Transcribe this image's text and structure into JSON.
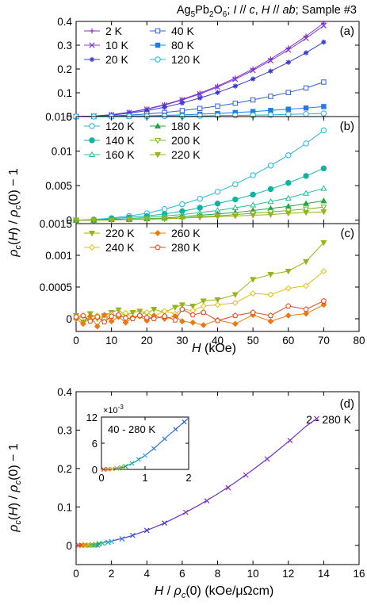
{
  "title": "Ag5Pb2O6; I // c, H // ab; Sample #3",
  "title_parts": {
    "a": "Ag",
    "b": "5",
    "c": "Pb",
    "d": "2",
    "e": "O",
    "f": "6",
    "g": "; ",
    "h": "I",
    "i": " // ",
    "j": "c",
    "k": ", ",
    "l": "H",
    "m": " // ",
    "n": "ab",
    "o": "; Sample #3"
  },
  "ylabel_top": "ρc(H) / ρc(0) − 1",
  "ylabel_parts": {
    "rho": "ρ",
    "sub": "c",
    "arg1": "(H) / ",
    "rho2": "ρ",
    "sub2": "c",
    "rest": "(0) − 1"
  },
  "xlabel_top": "H (kOe)",
  "xlabel_top_parts": {
    "h": "H",
    "rest": " (kOe)"
  },
  "xlabel_d": "H / ρc(0) (kOe/μΩcm)",
  "xlabel_d_parts": {
    "h": "H",
    "mid": " / ",
    "rho": "ρ",
    "sub": "c",
    "rest": "(0) (kOe/μΩcm)"
  },
  "colors": {
    "2K": "#8b2fc9",
    "10K": "#7a3ad9",
    "20K": "#3b3bd4",
    "40K": "#2d63d6",
    "80K": "#1f7ee6",
    "120K": "#22b3e6",
    "140K": "#10b3a3",
    "160K": "#20c08a",
    "180K": "#22a640",
    "200K": "#6dbb1f",
    "220K": "#98b41a",
    "240K": "#e0c010",
    "260K": "#e87a10",
    "280K": "#e2481d"
  },
  "chart_data": [
    {
      "panel": "(a)",
      "type": "line",
      "xlim": [
        0,
        80
      ],
      "ylim": [
        0,
        0.4
      ],
      "yticks": [
        "0",
        "0.1",
        "0.2",
        "0.3",
        "0.4"
      ],
      "series": [
        {
          "name": "2 K",
          "marker": "plus",
          "color_key": "2K",
          "x": [
            0,
            5,
            10,
            15,
            20,
            25,
            30,
            35,
            40,
            45,
            50,
            55,
            60,
            65,
            70
          ],
          "y": [
            0,
            0.002,
            0.008,
            0.018,
            0.032,
            0.05,
            0.072,
            0.098,
            0.128,
            0.162,
            0.2,
            0.242,
            0.288,
            0.338,
            0.393
          ]
        },
        {
          "name": "10 K",
          "marker": "x",
          "color_key": "10K",
          "x": [
            0,
            5,
            10,
            15,
            20,
            25,
            30,
            35,
            40,
            45,
            50,
            55,
            60,
            65,
            70
          ],
          "y": [
            0,
            0.002,
            0.008,
            0.017,
            0.031,
            0.048,
            0.07,
            0.095,
            0.124,
            0.157,
            0.194,
            0.235,
            0.28,
            0.329,
            0.382
          ]
        },
        {
          "name": "20 K",
          "marker": "star",
          "color_key": "20K",
          "x": [
            0,
            5,
            10,
            15,
            20,
            25,
            30,
            35,
            40,
            45,
            50,
            55,
            60,
            65,
            70
          ],
          "y": [
            0,
            0.002,
            0.006,
            0.014,
            0.025,
            0.039,
            0.057,
            0.078,
            0.101,
            0.128,
            0.158,
            0.191,
            0.228,
            0.268,
            0.313
          ]
        },
        {
          "name": "40 K",
          "marker": "square-open",
          "color_key": "40K",
          "x": [
            0,
            5,
            10,
            15,
            20,
            25,
            30,
            35,
            40,
            45,
            50,
            55,
            60,
            65,
            70
          ],
          "y": [
            0,
            0.001,
            0.003,
            0.006,
            0.011,
            0.017,
            0.025,
            0.034,
            0.044,
            0.056,
            0.07,
            0.085,
            0.101,
            0.12,
            0.145
          ]
        },
        {
          "name": "80 K",
          "marker": "square-filled",
          "color_key": "80K",
          "x": [
            0,
            5,
            10,
            15,
            20,
            25,
            30,
            35,
            40,
            45,
            50,
            55,
            60,
            65,
            70
          ],
          "y": [
            0,
            0,
            0.001,
            0.002,
            0.003,
            0.005,
            0.007,
            0.01,
            0.013,
            0.017,
            0.021,
            0.026,
            0.031,
            0.036,
            0.042
          ]
        },
        {
          "name": "120 K",
          "marker": "circle-open",
          "color_key": "120K",
          "x": [
            0,
            5,
            10,
            15,
            20,
            25,
            30,
            35,
            40,
            45,
            50,
            55,
            60,
            65,
            70
          ],
          "y": [
            0,
            0,
            0,
            0.001,
            0.001,
            0.002,
            0.002,
            0.003,
            0.004,
            0.005,
            0.006,
            0.007,
            0.009,
            0.011,
            0.013
          ]
        }
      ]
    },
    {
      "panel": "(b)",
      "type": "line",
      "xlim": [
        0,
        80
      ],
      "ylim": [
        -0.0005,
        0.015
      ],
      "yticks": [
        "0",
        "0.005",
        "0.01",
        "0.015"
      ],
      "series": [
        {
          "name": "120 K",
          "marker": "circle-open",
          "color_key": "120K",
          "x": [
            0,
            5,
            10,
            15,
            20,
            25,
            30,
            35,
            40,
            45,
            50,
            55,
            60,
            65,
            70
          ],
          "y": [
            0,
            0.0001,
            0.0003,
            0.0006,
            0.001,
            0.0016,
            0.0023,
            0.0031,
            0.0041,
            0.0052,
            0.0065,
            0.0079,
            0.0094,
            0.0111,
            0.013
          ]
        },
        {
          "name": "140 K",
          "marker": "circle-filled",
          "color_key": "140K",
          "x": [
            0,
            5,
            10,
            15,
            20,
            25,
            30,
            35,
            40,
            45,
            50,
            55,
            60,
            65,
            70
          ],
          "y": [
            0,
            0,
            0.0002,
            0.0004,
            0.0006,
            0.0009,
            0.0013,
            0.0018,
            0.0024,
            0.003,
            0.0037,
            0.0045,
            0.0054,
            0.0064,
            0.0075
          ]
        },
        {
          "name": "160 K",
          "marker": "triangle-open",
          "color_key": "160K",
          "x": [
            0,
            5,
            10,
            15,
            20,
            25,
            30,
            35,
            40,
            45,
            50,
            55,
            60,
            65,
            70
          ],
          "y": [
            0,
            0,
            0.0001,
            0.0002,
            0.0004,
            0.0006,
            0.0008,
            0.0011,
            0.0014,
            0.0018,
            0.0022,
            0.0027,
            0.0032,
            0.0039,
            0.0046
          ]
        },
        {
          "name": "180 K",
          "marker": "triangle-filled",
          "color_key": "180K",
          "x": [
            0,
            5,
            10,
            15,
            20,
            25,
            30,
            35,
            40,
            45,
            50,
            55,
            60,
            65,
            70
          ],
          "y": [
            0,
            0,
            0.0001,
            0.0001,
            0.0002,
            0.0003,
            0.0005,
            0.0007,
            0.0009,
            0.0011,
            0.0014,
            0.0017,
            0.002,
            0.0024,
            0.0028
          ]
        },
        {
          "name": "200 K",
          "marker": "triangle-down-open",
          "color_key": "200K",
          "x": [
            0,
            5,
            10,
            15,
            20,
            25,
            30,
            35,
            40,
            45,
            50,
            55,
            60,
            65,
            70
          ],
          "y": [
            0,
            0,
            0,
            0.0001,
            0.0002,
            0.0002,
            0.0003,
            0.0005,
            0.0006,
            0.0008,
            0.001,
            0.0012,
            0.0014,
            0.0016,
            0.0019
          ]
        },
        {
          "name": "220 K",
          "marker": "triangle-down-filled",
          "color_key": "220K",
          "x": [
            0,
            5,
            10,
            15,
            20,
            25,
            30,
            35,
            40,
            45,
            50,
            55,
            60,
            65,
            70
          ],
          "y": [
            0,
            0,
            0,
            0.0001,
            0.0001,
            0.0002,
            0.0003,
            0.0004,
            0.0005,
            0.0006,
            0.0007,
            0.0008,
            0.001,
            0.0011,
            0.0012
          ]
        }
      ]
    },
    {
      "panel": "(c)",
      "type": "line",
      "xlim": [
        0,
        80
      ],
      "ylim": [
        -0.0002,
        0.0015
      ],
      "yticks": [
        "0",
        "0.0005",
        "0.001",
        "0.0015"
      ],
      "series": [
        {
          "name": "220 K",
          "marker": "triangle-down-filled",
          "color_key": "220K",
          "x": [
            0,
            2,
            4,
            6,
            8,
            10,
            12,
            14,
            16,
            18,
            20,
            22,
            25,
            28,
            30,
            33,
            36,
            40,
            45,
            50,
            55,
            60,
            65,
            70
          ],
          "y": [
            5e-05,
            -5e-05,
            8e-05,
            0.0,
            5e-05,
            0.0001,
            0.00014,
            5e-05,
            0.0001,
            0.00012,
            8e-05,
            0.00015,
            0.0001,
            0.00018,
            0.00022,
            0.0002,
            0.00028,
            0.0003,
            0.00038,
            0.00062,
            0.0007,
            0.00075,
            0.0009,
            0.0012
          ]
        },
        {
          "name": "240 K",
          "marker": "diamond-open",
          "color_key": "240K",
          "x": [
            0,
            2,
            4,
            6,
            8,
            10,
            12,
            14,
            16,
            18,
            20,
            22,
            25,
            28,
            30,
            33,
            36,
            40,
            45,
            50,
            55,
            60,
            65,
            70
          ],
          "y": [
            0.0,
            4e-05,
            -3e-05,
            5e-05,
            0.0,
            7e-05,
            3e-05,
            9e-05,
            2e-05,
            6e-05,
            0.0001,
            4e-05,
            0.00012,
            8e-05,
            0.00015,
            0.00013,
            0.0002,
            0.00022,
            0.00025,
            0.0004,
            0.00038,
            0.00048,
            0.00052,
            0.00075
          ]
        },
        {
          "name": "260 K",
          "marker": "diamond-filled",
          "color_key": "260K",
          "x": [
            0,
            2,
            4,
            6,
            8,
            10,
            12,
            14,
            16,
            18,
            20,
            22,
            25,
            28,
            30,
            33,
            36,
            40,
            45,
            50,
            55,
            60,
            65,
            70
          ],
          "y": [
            0.0,
            -8e-05,
            4e-05,
            -0.00012,
            6e-05,
            -4e-05,
            3e-05,
            -6e-05,
            2e-05,
            4e-05,
            -3e-05,
            5e-05,
            0.0,
            4e-05,
            -4e-05,
            -6e-05,
            -0.0001,
            -2e-05,
            -8e-05,
            6e-05,
            -4e-05,
            5e-05,
            8e-05,
            0.00022
          ]
        },
        {
          "name": "280 K",
          "marker": "pentagon-open",
          "color_key": "280K",
          "x": [
            0,
            2,
            4,
            6,
            8,
            10,
            12,
            14,
            16,
            18,
            20,
            22,
            25,
            28,
            30,
            33,
            36,
            40,
            45,
            50,
            55,
            60,
            65,
            70
          ],
          "y": [
            3e-05,
            5e-05,
            -4e-05,
            3e-05,
            -5e-05,
            4e-05,
            6e-05,
            1e-05,
            0.0,
            5e-05,
            2e-05,
            0.0,
            4e-05,
            -2e-05,
            0.00015,
            6e-05,
            0.0001,
            -3e-05,
            5e-05,
            0.0001,
            5e-05,
            0.0002,
            0.00015,
            0.00028
          ]
        }
      ]
    },
    {
      "panel": "(d)",
      "type": "scatter",
      "xlim": [
        0,
        16
      ],
      "ylim": [
        -0.05,
        0.4
      ],
      "yticks": [
        "0",
        "0.1",
        "0.2",
        "0.3",
        "0.4"
      ],
      "xticks": [
        "0",
        "2",
        "4",
        "6",
        "8",
        "10",
        "12",
        "14",
        "16"
      ],
      "annotation": "2 - 280 K",
      "fit_curve": {
        "x": [
          0,
          1,
          2,
          3,
          4,
          5,
          6,
          7,
          8,
          9,
          10,
          11,
          12,
          13,
          13.6
        ],
        "y": [
          0,
          0.003,
          0.011,
          0.023,
          0.039,
          0.058,
          0.081,
          0.106,
          0.134,
          0.164,
          0.197,
          0.232,
          0.27,
          0.31,
          0.33
        ]
      },
      "points": [
        {
          "x": 0.3,
          "y": 0.0005,
          "color_key": "280K"
        },
        {
          "x": 0.5,
          "y": 0.0008,
          "color_key": "260K"
        },
        {
          "x": 0.7,
          "y": 0.0015,
          "color_key": "240K"
        },
        {
          "x": 0.9,
          "y": 0.002,
          "color_key": "220K"
        },
        {
          "x": 1.1,
          "y": 0.0025,
          "color_key": "200K"
        },
        {
          "x": 1.3,
          "y": 0.004,
          "color_key": "180K"
        },
        {
          "x": 1.5,
          "y": 0.005,
          "color_key": "160K"
        },
        {
          "x": 1.8,
          "y": 0.008,
          "color_key": "140K"
        },
        {
          "x": 2.0,
          "y": 0.01,
          "color_key": "120K"
        },
        {
          "x": 2.6,
          "y": 0.017,
          "color_key": "80K"
        },
        {
          "x": 3.2,
          "y": 0.026,
          "color_key": "40K"
        },
        {
          "x": 4.0,
          "y": 0.039,
          "color_key": "20K"
        },
        {
          "x": 5.0,
          "y": 0.058,
          "color_key": "20K"
        },
        {
          "x": 6.2,
          "y": 0.086,
          "color_key": "10K"
        },
        {
          "x": 7.4,
          "y": 0.116,
          "color_key": "10K"
        },
        {
          "x": 8.6,
          "y": 0.15,
          "color_key": "2K"
        },
        {
          "x": 9.6,
          "y": 0.183,
          "color_key": "2K"
        },
        {
          "x": 10.8,
          "y": 0.225,
          "color_key": "2K"
        },
        {
          "x": 12.1,
          "y": 0.273,
          "color_key": "10K"
        },
        {
          "x": 13.6,
          "y": 0.33,
          "color_key": "2K"
        }
      ],
      "inset": {
        "xlim": [
          0,
          2
        ],
        "ylim": [
          0,
          12
        ],
        "xticks": [
          "0",
          "1",
          "2"
        ],
        "yticks": [
          "0",
          "6",
          "12"
        ],
        "scale_label": "×10",
        "scale_exp": "-3",
        "label": "40 - 280 K",
        "fit_curve": {
          "x": [
            0,
            0.25,
            0.5,
            0.75,
            1,
            1.25,
            1.5,
            1.75,
            2
          ],
          "y": [
            0,
            0.1,
            0.5,
            1.6,
            3.2,
            5.2,
            7.5,
            9.6,
            11.8
          ]
        },
        "points": [
          {
            "x": 0.05,
            "y": 0.0,
            "color_key": "280K"
          },
          {
            "x": 0.15,
            "y": 0.05,
            "color_key": "260K"
          },
          {
            "x": 0.25,
            "y": 0.1,
            "color_key": "240K"
          },
          {
            "x": 0.35,
            "y": 0.25,
            "color_key": "220K"
          },
          {
            "x": 0.45,
            "y": 0.45,
            "color_key": "200K"
          },
          {
            "x": 0.55,
            "y": 0.7,
            "color_key": "180K"
          },
          {
            "x": 0.7,
            "y": 1.4,
            "color_key": "160K"
          },
          {
            "x": 0.85,
            "y": 2.3,
            "color_key": "140K"
          },
          {
            "x": 1.0,
            "y": 3.2,
            "color_key": "120K"
          },
          {
            "x": 1.2,
            "y": 4.8,
            "color_key": "80K"
          },
          {
            "x": 1.45,
            "y": 7.0,
            "color_key": "80K"
          },
          {
            "x": 1.7,
            "y": 9.2,
            "color_key": "40K"
          },
          {
            "x": 1.9,
            "y": 10.9,
            "color_key": "40K"
          }
        ]
      }
    }
  ],
  "xticks_top": [
    "0",
    "10",
    "20",
    "30",
    "40",
    "50",
    "60",
    "70",
    "80"
  ]
}
